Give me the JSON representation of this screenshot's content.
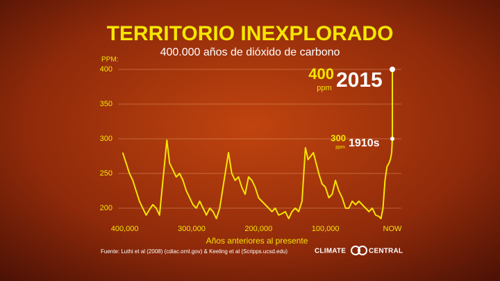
{
  "chart_data": {
    "type": "line",
    "title": "TERRITORIO INEXPLORADO",
    "subtitle": "400.000 años de dióxido de carbono",
    "y_label": "PPM:",
    "x_label": "Años anteriores al presente",
    "source": "Fuente: Luthi et al (2008) (cdiac.ornl.gov) & Keeling et al (Scripps.ucsd.edu)",
    "logo": "CLIMATE CENTRAL",
    "xlim": [
      410000,
      0
    ],
    "ylim": [
      182,
      400
    ],
    "xticks": [
      {
        "value": 400000,
        "label": "400,000"
      },
      {
        "value": 300000,
        "label": "300,000"
      },
      {
        "value": 200000,
        "label": "200,000"
      },
      {
        "value": 100000,
        "label": "100,000"
      },
      {
        "value": 0,
        "label": "NOW"
      }
    ],
    "yticks": [
      200,
      250,
      300,
      350,
      400
    ],
    "grid": true,
    "series": [
      {
        "name": "CO2",
        "color": "#f5e600",
        "x": [
          403000,
          398000,
          393000,
          388000,
          383000,
          378000,
          373000,
          368000,
          363000,
          358000,
          353000,
          348000,
          337000,
          333000,
          328000,
          323000,
          318000,
          313000,
          308000,
          303000,
          298000,
          293000,
          288000,
          283000,
          278000,
          273000,
          268000,
          263000,
          258000,
          245000,
          240000,
          235000,
          230000,
          225000,
          220000,
          215000,
          210000,
          205000,
          200000,
          195000,
          190000,
          185000,
          180000,
          175000,
          170000,
          165000,
          160000,
          155000,
          150000,
          145000,
          140000,
          135000,
          130000,
          126000,
          122000,
          118000,
          114000,
          110000,
          105000,
          100000,
          95000,
          90000,
          85000,
          80000,
          75000,
          70000,
          65000,
          60000,
          55000,
          50000,
          45000,
          40000,
          35000,
          30000,
          25000,
          20000,
          17000,
          14000,
          11000,
          8000,
          5000,
          3000,
          1000,
          0,
          0
        ],
        "values": [
          280,
          265,
          250,
          240,
          225,
          210,
          200,
          190,
          198,
          205,
          200,
          190,
          298,
          265,
          255,
          245,
          250,
          240,
          225,
          215,
          205,
          200,
          210,
          200,
          190,
          200,
          195,
          185,
          200,
          280,
          250,
          240,
          245,
          230,
          220,
          245,
          240,
          230,
          215,
          210,
          205,
          200,
          195,
          200,
          190,
          192,
          195,
          185,
          195,
          200,
          195,
          210,
          287,
          270,
          275,
          280,
          265,
          250,
          235,
          230,
          215,
          220,
          240,
          225,
          215,
          200,
          200,
          210,
          205,
          210,
          205,
          200,
          195,
          200,
          190,
          188,
          185,
          200,
          240,
          260,
          265,
          270,
          280,
          300,
          400
        ]
      }
    ],
    "annotations": [
      {
        "value": 400,
        "unit": "ppm",
        "label": "2015"
      },
      {
        "value": 300,
        "unit": "ppm",
        "label": "1910s"
      }
    ]
  }
}
